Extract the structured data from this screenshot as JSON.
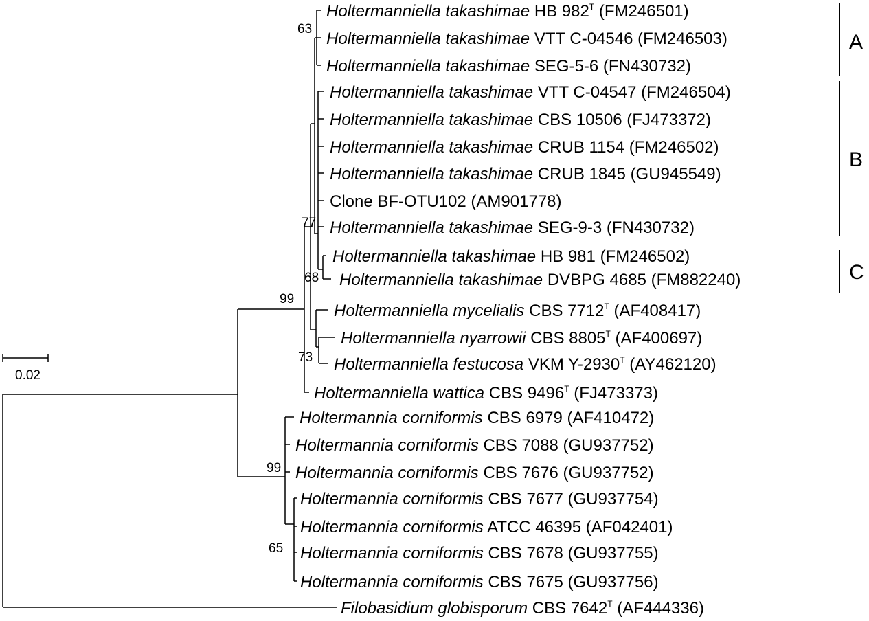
{
  "leaves": [
    {
      "id": "t1",
      "species": "Holtermanniella takashimae",
      "strain": "HB 982",
      "type": true,
      "acc": "(FM246501)"
    },
    {
      "id": "t2",
      "species": "Holtermanniella takashimae",
      "strain": "VTT C-04546",
      "type": false,
      "acc": "(FM246503)"
    },
    {
      "id": "t3",
      "species": "Holtermanniella takashimae",
      "strain": "SEG-5-6",
      "type": false,
      "acc": "(FN430732)"
    },
    {
      "id": "t4",
      "species": "Holtermanniella takashimae",
      "strain": "VTT C-04547",
      "type": false,
      "acc": "(FM246504)"
    },
    {
      "id": "t5",
      "species": "Holtermanniella takashimae",
      "strain": "CBS 10506",
      "type": false,
      "acc": "(FJ473372)"
    },
    {
      "id": "t6",
      "species": "Holtermanniella takashimae",
      "strain": "CRUB 1154",
      "type": false,
      "acc": "(FM246502)"
    },
    {
      "id": "t7",
      "species": "Holtermanniella takashimae",
      "strain": "CRUB 1845",
      "type": false,
      "acc": "(GU945549)"
    },
    {
      "id": "t8",
      "species": "",
      "strain": "Clone BF-OTU102",
      "type": false,
      "acc": "(AM901778)"
    },
    {
      "id": "t9",
      "species": "Holtermanniella takashimae",
      "strain": "SEG-9-3",
      "type": false,
      "acc": "(FN430732)"
    },
    {
      "id": "t10",
      "species": "Holtermanniella takashimae",
      "strain": "HB 981",
      "type": false,
      "acc": "(FM246502)"
    },
    {
      "id": "t11",
      "species": "Holtermanniella takashimae",
      "strain": "DVBPG 4685",
      "type": false,
      "acc": "(FM882240)"
    },
    {
      "id": "t12",
      "species": "Holtermanniella mycelialis",
      "strain": "CBS 7712",
      "type": true,
      "acc": "(AF408417)"
    },
    {
      "id": "t13",
      "species": "Holtermanniella nyarrowii",
      "strain": "CBS 8805",
      "type": true,
      "acc": "(AF400697)"
    },
    {
      "id": "t14",
      "species": "Holtermanniella festucosa",
      "strain": "VKM Y-2930",
      "type": true,
      "acc": "(AY462120)"
    },
    {
      "id": "t15",
      "species": "Holtermanniella wattica",
      "strain": "CBS 9496",
      "type": true,
      "acc": "(FJ473373)"
    },
    {
      "id": "t16",
      "species": "Holtermannia corniformis",
      "strain": "CBS 6979",
      "type": false,
      "acc": "(AF410472)"
    },
    {
      "id": "t17",
      "species": "Holtermannia corniformis",
      "strain": "CBS 7088",
      "type": false,
      "acc": "(GU937752)"
    },
    {
      "id": "t18",
      "species": "Holtermannia corniformis",
      "strain": "CBS 7676",
      "type": false,
      "acc": "(GU937752)"
    },
    {
      "id": "t19",
      "species": "Holtermannia corniformis",
      "strain": "CBS 7677",
      "type": false,
      "acc": "(GU937754)"
    },
    {
      "id": "t20",
      "species": "Holtermannia corniformis",
      "strain": "ATCC 46395",
      "type": false,
      "acc": "(AF042401)"
    },
    {
      "id": "t21",
      "species": "Holtermannia corniformis",
      "strain": "CBS 7678",
      "type": false,
      "acc": "(GU937755)"
    },
    {
      "id": "t22",
      "species": "Holtermannia corniformis",
      "strain": "CBS 7675",
      "type": false,
      "acc": "(GU937756)"
    },
    {
      "id": "t23",
      "species": "Filobasidium globisporum",
      "strain": "CBS 7642",
      "type": true,
      "acc": "(AF444336)"
    }
  ],
  "type_marker": "T",
  "bootstrap": [
    {
      "id": "b63",
      "value": "63"
    },
    {
      "id": "b77",
      "value": "77"
    },
    {
      "id": "b68",
      "value": "68"
    },
    {
      "id": "b99a",
      "value": "99"
    },
    {
      "id": "b73",
      "value": "73"
    },
    {
      "id": "b99b",
      "value": "99"
    },
    {
      "id": "b65",
      "value": "65"
    }
  ],
  "clades": [
    {
      "id": "cA",
      "label": "A"
    },
    {
      "id": "cB",
      "label": "B"
    },
    {
      "id": "cC",
      "label": "C"
    }
  ],
  "scale_bar": {
    "label": "0.02"
  }
}
